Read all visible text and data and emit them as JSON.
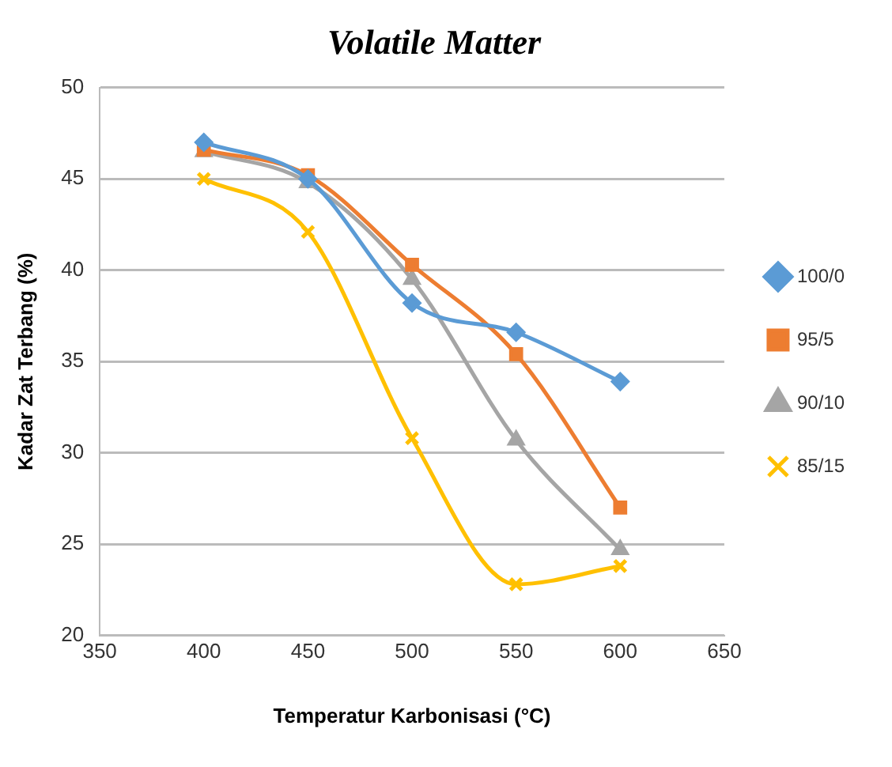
{
  "chart_data": {
    "type": "line",
    "title": "Volatile Matter",
    "xlabel": "Temperatur Karbonisasi (°C)",
    "ylabel": "Kadar Zat Terbang (%)",
    "x": [
      400,
      450,
      500,
      550,
      600
    ],
    "series": [
      {
        "name": "100/0",
        "color": "#5b9bd5",
        "marker": "diamond",
        "values": [
          47,
          45,
          38.2,
          36.6,
          33.9
        ]
      },
      {
        "name": "95/5",
        "color": "#ed7d31",
        "marker": "square",
        "values": [
          46.6,
          45.2,
          40.3,
          35.4,
          27
        ]
      },
      {
        "name": "90/10",
        "color": "#a5a5a5",
        "marker": "triangle",
        "values": [
          46.5,
          44.8,
          39.5,
          30.7,
          24.7
        ]
      },
      {
        "name": "85/15",
        "color": "#ffc000",
        "marker": "cross",
        "values": [
          45,
          42.1,
          30.8,
          22.8,
          23.8
        ]
      }
    ],
    "xlim": [
      350,
      650
    ],
    "xticks": [
      350,
      400,
      450,
      500,
      550,
      600,
      650
    ],
    "ylim": [
      20,
      50
    ],
    "yticks": [
      20,
      25,
      30,
      35,
      40,
      45,
      50
    ],
    "grid": "y",
    "legend": "right"
  }
}
